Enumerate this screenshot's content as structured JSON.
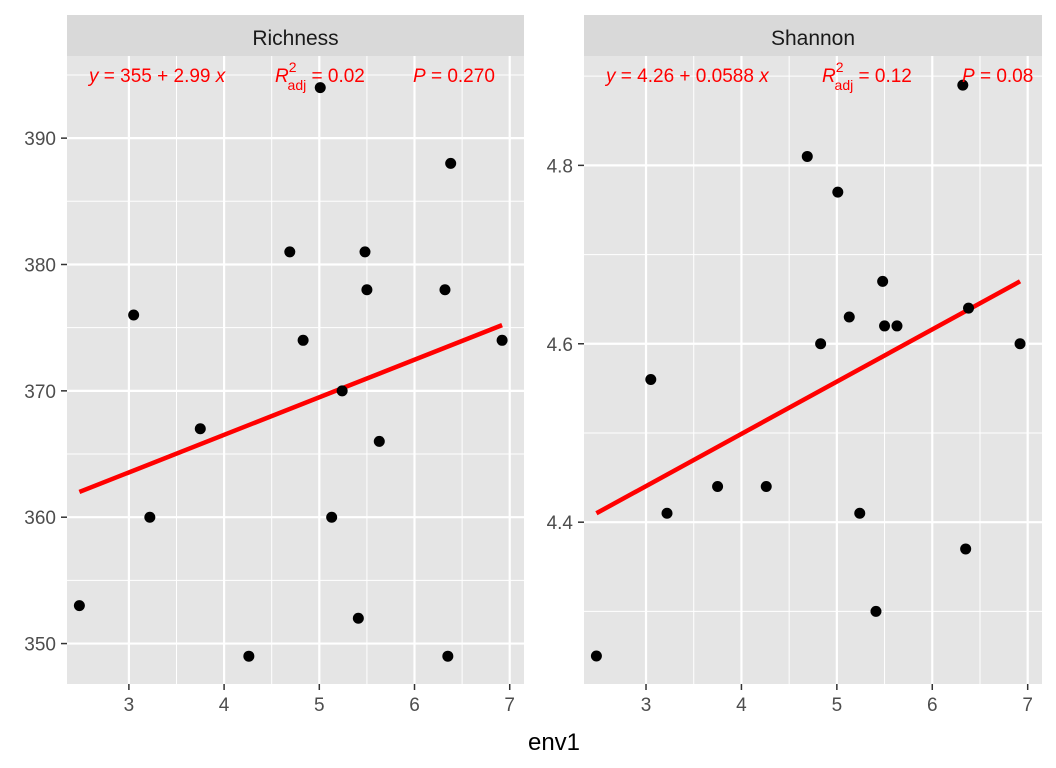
{
  "figure": {
    "xlabel": "env1"
  },
  "colors": {
    "panel_bg": "#e5e5e5",
    "strip_bg": "#d9d9d9",
    "grid": "#ffffff",
    "point": "#000000",
    "fit_line": "#ff0000",
    "annotation": "#ff0000"
  },
  "chart_data": [
    {
      "type": "scatter",
      "facet": "Richness",
      "title": "",
      "xlabel": "env1",
      "ylabel": "",
      "grid": true,
      "xlim": [
        2.35,
        7.15
      ],
      "ylim": [
        346.8,
        396.5
      ],
      "xticks": [
        3,
        4,
        5,
        6,
        7
      ],
      "yticks": [
        350,
        360,
        370,
        380,
        390
      ],
      "points": [
        {
          "x": 2.48,
          "y": 353
        },
        {
          "x": 3.05,
          "y": 376
        },
        {
          "x": 3.22,
          "y": 360
        },
        {
          "x": 3.75,
          "y": 367
        },
        {
          "x": 4.26,
          "y": 349
        },
        {
          "x": 4.69,
          "y": 381
        },
        {
          "x": 4.83,
          "y": 374
        },
        {
          "x": 5.01,
          "y": 394
        },
        {
          "x": 5.13,
          "y": 360
        },
        {
          "x": 5.24,
          "y": 370
        },
        {
          "x": 5.41,
          "y": 352
        },
        {
          "x": 5.48,
          "y": 381
        },
        {
          "x": 5.5,
          "y": 378
        },
        {
          "x": 5.63,
          "y": 366
        },
        {
          "x": 6.32,
          "y": 378
        },
        {
          "x": 6.35,
          "y": 349
        },
        {
          "x": 6.38,
          "y": 388
        },
        {
          "x": 6.92,
          "y": 374
        }
      ],
      "fit_line": {
        "x": [
          2.48,
          6.92
        ],
        "y": [
          362.0,
          375.2
        ]
      },
      "annotation": {
        "equation_y": "y",
        "equation_rest": " = 355 + 2.99 ",
        "equation_x": "x",
        "r2_label": "R",
        "r2_sup": "2",
        "r2_sub": "adj",
        "r2_value": " = 0.02",
        "p_label": "P",
        "p_value": " = 0.270"
      }
    },
    {
      "type": "scatter",
      "facet": "Shannon",
      "title": "",
      "xlabel": "env1",
      "ylabel": "",
      "grid": true,
      "xlim": [
        2.35,
        7.15
      ],
      "ylim": [
        4.2186,
        4.9226
      ],
      "xticks": [
        3,
        4,
        5,
        6,
        7
      ],
      "yticks": [
        4.4,
        4.6,
        4.8
      ],
      "points": [
        {
          "x": 2.48,
          "y": 4.25
        },
        {
          "x": 3.05,
          "y": 4.56
        },
        {
          "x": 3.22,
          "y": 4.41
        },
        {
          "x": 3.75,
          "y": 4.44
        },
        {
          "x": 4.26,
          "y": 4.44
        },
        {
          "x": 4.69,
          "y": 4.81
        },
        {
          "x": 4.83,
          "y": 4.6
        },
        {
          "x": 5.01,
          "y": 4.77
        },
        {
          "x": 5.13,
          "y": 4.63
        },
        {
          "x": 5.24,
          "y": 4.41
        },
        {
          "x": 5.41,
          "y": 4.3
        },
        {
          "x": 5.48,
          "y": 4.67
        },
        {
          "x": 5.5,
          "y": 4.62
        },
        {
          "x": 5.63,
          "y": 4.62
        },
        {
          "x": 6.32,
          "y": 4.89
        },
        {
          "x": 6.35,
          "y": 4.37
        },
        {
          "x": 6.38,
          "y": 4.64
        },
        {
          "x": 6.92,
          "y": 4.6
        }
      ],
      "fit_line": {
        "x": [
          2.48,
          6.92
        ],
        "y": [
          4.41,
          4.67
        ]
      },
      "annotation": {
        "equation_y": "y",
        "equation_rest": " = 4.26 + 0.0588 ",
        "equation_x": "x",
        "r2_label": "R",
        "r2_sup": "2",
        "r2_sub": "adj",
        "r2_value": " = 0.12",
        "p_label": "P",
        "p_value": " = 0.08"
      }
    }
  ]
}
